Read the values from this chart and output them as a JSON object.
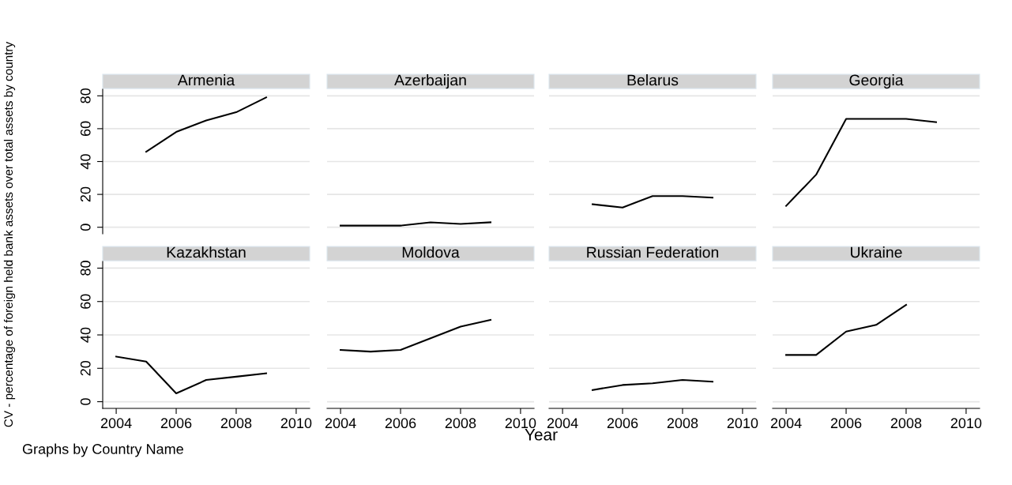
{
  "chart_data": [
    {
      "type": "line",
      "title": "Armenia",
      "ylabel": "CV - percentage of foreign held bank assets over total assets by country",
      "x": [
        2005,
        2006,
        2007,
        2008,
        2009
      ],
      "series": [
        {
          "color": "#000000",
          "values": [
            46,
            58,
            65,
            70,
            79
          ]
        }
      ],
      "xlim": [
        2003.55,
        2010.45
      ],
      "ylim": [
        -4,
        84
      ],
      "xticks": [
        2004,
        2006,
        2008,
        2010
      ],
      "yticks": [
        0,
        20,
        40,
        60,
        80
      ],
      "tick_labels": "y",
      "grid": "y",
      "legend": false
    },
    {
      "type": "line",
      "title": "Azerbaijan",
      "x": [
        2004,
        2005,
        2006,
        2007,
        2008,
        2009
      ],
      "series": [
        {
          "color": "#000000",
          "values": [
            1,
            1,
            1,
            3,
            2,
            3
          ]
        }
      ],
      "xlim": [
        2003.55,
        2010.45
      ],
      "xticks": [
        2004,
        2006,
        2008,
        2010
      ],
      "yticks": [
        0,
        20,
        40,
        60,
        80
      ],
      "tick_labels": false,
      "grid": "y",
      "legend": false
    },
    {
      "type": "line",
      "title": "Belarus",
      "x": [
        2005,
        2006,
        2007,
        2008,
        2009
      ],
      "series": [
        {
          "color": "#000000",
          "values": [
            14,
            12,
            19,
            19,
            18
          ]
        }
      ],
      "xlim": [
        2003.55,
        2010.45
      ],
      "xticks": [
        2004,
        2006,
        2008,
        2010
      ],
      "yticks": [
        0,
        20,
        40,
        60,
        80
      ],
      "tick_labels": false,
      "grid": "y",
      "legend": false
    },
    {
      "type": "line",
      "title": "Georgia",
      "x": [
        2004,
        2005,
        2006,
        2007,
        2008,
        2009
      ],
      "series": [
        {
          "color": "#000000",
          "values": [
            13,
            32,
            66,
            66,
            66,
            64
          ]
        }
      ],
      "xlim": [
        2003.55,
        2010.45
      ],
      "xticks": [
        2004,
        2006,
        2008,
        2010
      ],
      "yticks": [
        0,
        20,
        40,
        60,
        80
      ],
      "tick_labels": false,
      "grid": "y",
      "legend": false
    },
    {
      "type": "line",
      "title": "Kazakhstan",
      "annotations": [
        "Graphs by Country Name"
      ],
      "x": [
        2004,
        2005,
        2006,
        2007,
        2008,
        2009
      ],
      "series": [
        {
          "color": "#000000",
          "values": [
            27,
            24,
            5,
            13,
            15,
            17
          ]
        }
      ],
      "xlim": [
        2003.55,
        2010.45
      ],
      "ylim": [
        -4,
        84
      ],
      "xticks": [
        2004,
        2006,
        2008,
        2010
      ],
      "yticks": [
        0,
        20,
        40,
        60,
        80
      ],
      "grid": "y",
      "legend": false
    },
    {
      "type": "line",
      "title": "Moldova",
      "xlabel": "Year",
      "x": [
        2004,
        2005,
        2006,
        2007,
        2008,
        2009
      ],
      "series": [
        {
          "color": "#000000",
          "values": [
            31,
            30,
            31,
            38,
            45,
            49
          ]
        }
      ],
      "xlim": [
        2003.55,
        2010.45
      ],
      "xticks": [
        2004,
        2006,
        2008,
        2010
      ],
      "yticks": [
        0,
        20,
        40,
        60,
        80
      ],
      "tick_labels": "x",
      "grid": "y",
      "legend": false
    },
    {
      "type": "line",
      "title": "Russian Federation",
      "x": [
        2005,
        2006,
        2007,
        2008,
        2009
      ],
      "series": [
        {
          "color": "#000000",
          "values": [
            7,
            10,
            11,
            13,
            12
          ]
        }
      ],
      "xlim": [
        2003.55,
        2010.45
      ],
      "xticks": [
        2004,
        2006,
        2008,
        2010
      ],
      "yticks": [
        0,
        20,
        40,
        60,
        80
      ],
      "tick_labels": "x",
      "grid": "y",
      "legend": false
    },
    {
      "type": "line",
      "title": "Ukraine",
      "x": [
        2004,
        2005,
        2006,
        2007,
        2008
      ],
      "series": [
        {
          "color": "#000000",
          "values": [
            28,
            28,
            42,
            46,
            58
          ]
        }
      ],
      "xlim": [
        2003.55,
        2010.45
      ],
      "xticks": [
        2004,
        2006,
        2008,
        2010
      ],
      "yticks": [
        0,
        20,
        40,
        60,
        80
      ],
      "tick_labels": "x",
      "grid": "y",
      "legend": false
    }
  ]
}
